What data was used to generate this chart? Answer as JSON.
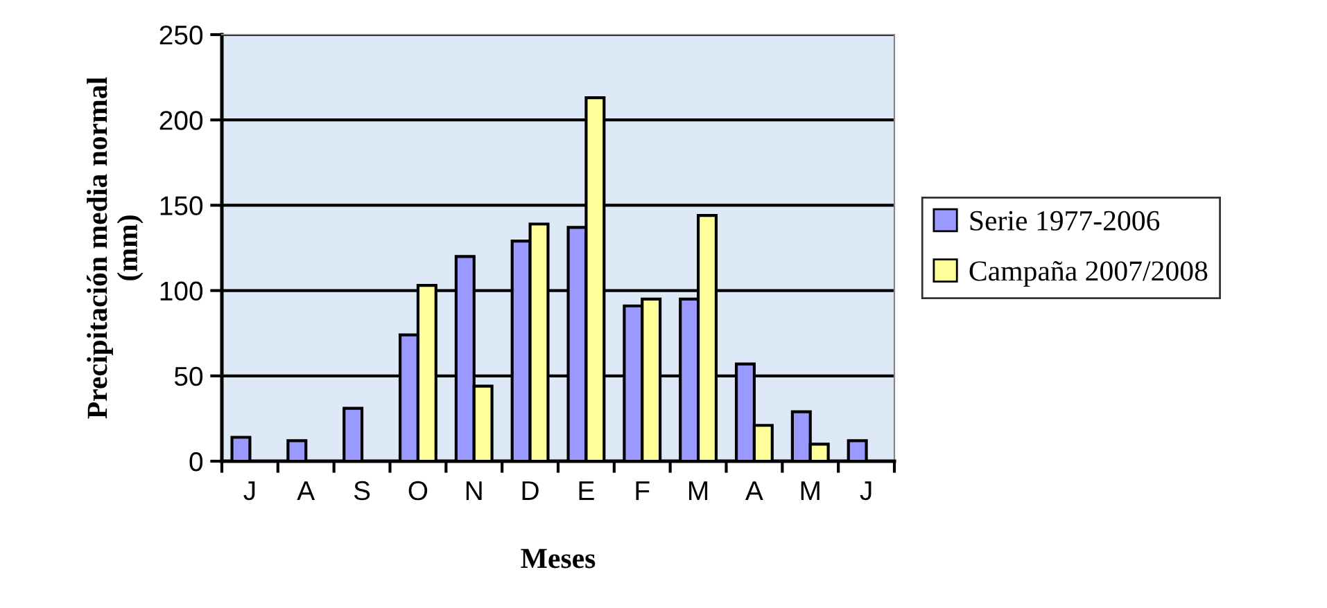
{
  "chart_data": {
    "type": "bar",
    "xlabel": "Meses",
    "ylabel": "Precipitación media normal\n(mm)",
    "categories": [
      "J",
      "A",
      "S",
      "O",
      "N",
      "D",
      "E",
      "F",
      "M",
      "A",
      "M",
      "J"
    ],
    "series": [
      {
        "name": "Serie 1977-2006",
        "color": "#9999ff",
        "values": [
          14,
          12,
          31,
          74,
          120,
          129,
          137,
          91,
          95,
          57,
          29,
          12
        ]
      },
      {
        "name": "Campaña 2007/2008",
        "color": "#ffff99",
        "values": [
          null,
          null,
          null,
          103,
          44,
          139,
          213,
          95,
          144,
          21,
          10,
          null
        ]
      }
    ],
    "ylim": [
      0,
      250
    ],
    "yticks": [
      0,
      50,
      100,
      150,
      200,
      250
    ],
    "grid": "y",
    "legend": "right"
  }
}
